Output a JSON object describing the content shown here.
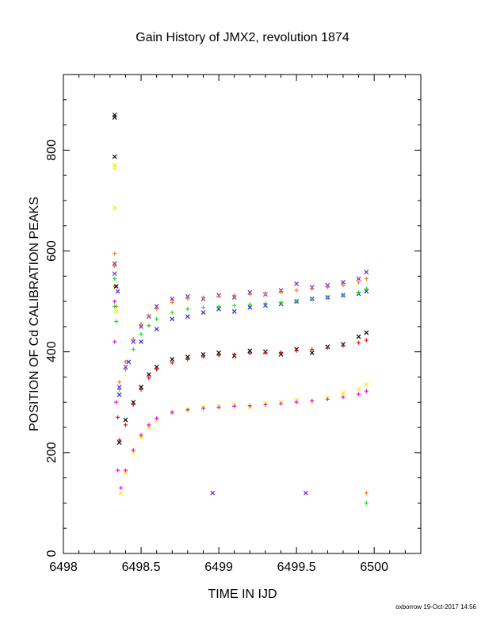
{
  "chart_data": {
    "type": "scatter",
    "title": "Gain History of JMX2, revolution 1874",
    "xlabel": "TIME IN IJD",
    "ylabel": "POSITION OF Cd CALIBRATION PEAKS",
    "xlim": [
      6498,
      6500.3
    ],
    "ylim": [
      0,
      950
    ],
    "x_ticks": [
      6498,
      6498.5,
      6499,
      6499.5,
      6500
    ],
    "x_tick_labels": [
      "6498",
      "6498.5",
      "6499",
      "6499.5",
      "6500"
    ],
    "y_ticks": [
      0,
      200,
      400,
      600,
      800
    ],
    "y_tick_labels": [
      "0",
      "200",
      "400",
      "600",
      "800"
    ],
    "footer": "oxborrow 19-Oct-2017 14:56",
    "grid": false,
    "legend": "none",
    "series": [
      {
        "color": "#7a1fd0",
        "marker": "x",
        "points": [
          [
            6498.33,
            575
          ],
          [
            6498.33,
            555
          ],
          [
            6498.35,
            520
          ],
          [
            6498.36,
            330
          ],
          [
            6498.4,
            370
          ],
          [
            6498.45,
            420
          ],
          [
            6498.5,
            450
          ],
          [
            6498.55,
            470
          ],
          [
            6498.6,
            490
          ],
          [
            6498.7,
            505
          ],
          [
            6498.8,
            510
          ],
          [
            6498.9,
            505
          ],
          [
            6499,
            512
          ],
          [
            6499.1,
            508
          ],
          [
            6499.2,
            518
          ],
          [
            6499.3,
            514
          ],
          [
            6499.4,
            522
          ],
          [
            6499.5,
            535
          ],
          [
            6499.6,
            528
          ],
          [
            6499.7,
            532
          ],
          [
            6499.8,
            538
          ],
          [
            6499.9,
            545
          ],
          [
            6499.95,
            558
          ],
          [
            6498.96,
            120
          ],
          [
            6499.56,
            120
          ]
        ]
      },
      {
        "color": "#2a2ae6",
        "marker": "x",
        "points": [
          [
            6498.36,
            315
          ],
          [
            6498.42,
            380
          ],
          [
            6498.5,
            420
          ],
          [
            6498.6,
            445
          ],
          [
            6498.7,
            465
          ],
          [
            6498.8,
            470
          ],
          [
            6498.9,
            478
          ],
          [
            6499,
            485
          ],
          [
            6499.1,
            480
          ],
          [
            6499.2,
            488
          ],
          [
            6499.3,
            492
          ],
          [
            6499.4,
            495
          ],
          [
            6499.5,
            500
          ],
          [
            6499.6,
            505
          ],
          [
            6499.7,
            508
          ],
          [
            6499.8,
            512
          ],
          [
            6499.9,
            515
          ],
          [
            6499.95,
            520
          ]
        ]
      },
      {
        "color": "#f08020",
        "marker": "+",
        "points": [
          [
            6498.33,
            595
          ],
          [
            6498.33,
            570
          ],
          [
            6498.33,
            530
          ],
          [
            6498.34,
            490
          ],
          [
            6498.36,
            340
          ],
          [
            6498.4,
            380
          ],
          [
            6498.45,
            425
          ],
          [
            6498.5,
            455
          ],
          [
            6498.55,
            472
          ],
          [
            6498.6,
            485
          ],
          [
            6498.7,
            498
          ],
          [
            6498.8,
            505
          ],
          [
            6498.9,
            508
          ],
          [
            6499,
            510
          ],
          [
            6499.1,
            512
          ],
          [
            6499.2,
            514
          ],
          [
            6499.3,
            516
          ],
          [
            6499.4,
            518
          ],
          [
            6499.5,
            522
          ],
          [
            6499.6,
            525
          ],
          [
            6499.7,
            528
          ],
          [
            6499.8,
            532
          ],
          [
            6499.9,
            538
          ],
          [
            6499.95,
            545
          ],
          [
            6499.95,
            120
          ]
        ]
      },
      {
        "color": "#22dd22",
        "marker": "+",
        "points": [
          [
            6498.33,
            545
          ],
          [
            6498.33,
            490
          ],
          [
            6498.34,
            460
          ],
          [
            6498.36,
            325
          ],
          [
            6498.4,
            365
          ],
          [
            6498.45,
            405
          ],
          [
            6498.5,
            435
          ],
          [
            6498.55,
            452
          ],
          [
            6498.6,
            465
          ],
          [
            6498.7,
            478
          ],
          [
            6498.8,
            485
          ],
          [
            6498.9,
            488
          ],
          [
            6499,
            490
          ],
          [
            6499.1,
            492
          ],
          [
            6499.2,
            494
          ],
          [
            6499.3,
            496
          ],
          [
            6499.4,
            498
          ],
          [
            6499.5,
            500
          ],
          [
            6499.6,
            504
          ],
          [
            6499.7,
            508
          ],
          [
            6499.8,
            512
          ],
          [
            6499.9,
            518
          ],
          [
            6499.95,
            525
          ],
          [
            6499.95,
            100
          ]
        ]
      },
      {
        "color": "#000000",
        "marker": "x",
        "points": [
          [
            6498.33,
            870
          ],
          [
            6498.33,
            865
          ],
          [
            6498.33,
            787
          ],
          [
            6498.34,
            530
          ],
          [
            6498.36,
            220
          ],
          [
            6498.4,
            265
          ],
          [
            6498.45,
            300
          ],
          [
            6498.5,
            330
          ],
          [
            6498.55,
            355
          ],
          [
            6498.6,
            370
          ],
          [
            6498.7,
            385
          ],
          [
            6498.8,
            390
          ],
          [
            6498.9,
            395
          ],
          [
            6499,
            398
          ],
          [
            6499.1,
            392
          ],
          [
            6499.2,
            402
          ],
          [
            6499.3,
            400
          ],
          [
            6499.4,
            395
          ],
          [
            6499.5,
            405
          ],
          [
            6499.6,
            398
          ],
          [
            6499.7,
            410
          ],
          [
            6499.8,
            415
          ],
          [
            6499.9,
            430
          ],
          [
            6499.95,
            438
          ]
        ]
      },
      {
        "color": "#e81010",
        "marker": "+",
        "points": [
          [
            6498.35,
            270
          ],
          [
            6498.36,
            225
          ],
          [
            6498.4,
            255
          ],
          [
            6498.45,
            295
          ],
          [
            6498.5,
            325
          ],
          [
            6498.55,
            348
          ],
          [
            6498.6,
            365
          ],
          [
            6498.7,
            378
          ],
          [
            6498.8,
            385
          ],
          [
            6498.9,
            390
          ],
          [
            6499,
            393
          ],
          [
            6499.1,
            395
          ],
          [
            6499.2,
            397
          ],
          [
            6499.3,
            398
          ],
          [
            6499.4,
            399
          ],
          [
            6499.5,
            402
          ],
          [
            6499.6,
            405
          ],
          [
            6499.7,
            408
          ],
          [
            6499.8,
            412
          ],
          [
            6499.9,
            418
          ],
          [
            6499.95,
            423
          ]
        ]
      },
      {
        "color": "#f2f200",
        "marker": "x",
        "points": [
          [
            6498.33,
            770
          ],
          [
            6498.33,
            765
          ],
          [
            6498.33,
            685
          ],
          [
            6498.34,
            480
          ],
          [
            6498.37,
            120
          ],
          [
            6498.4,
            160
          ],
          [
            6498.45,
            200
          ],
          [
            6498.5,
            230
          ],
          [
            6498.55,
            250
          ],
          [
            6498.6,
            265
          ],
          [
            6498.7,
            280
          ],
          [
            6498.8,
            285
          ],
          [
            6498.9,
            290
          ],
          [
            6499,
            292
          ],
          [
            6499.1,
            296
          ],
          [
            6499.2,
            290
          ],
          [
            6499.3,
            298
          ],
          [
            6499.4,
            300
          ],
          [
            6499.5,
            305
          ],
          [
            6499.6,
            300
          ],
          [
            6499.7,
            308
          ],
          [
            6499.8,
            318
          ],
          [
            6499.9,
            325
          ],
          [
            6499.95,
            335
          ]
        ]
      },
      {
        "color": "#ee10ee",
        "marker": "+",
        "points": [
          [
            6498.33,
            500
          ],
          [
            6498.33,
            420
          ],
          [
            6498.34,
            300
          ],
          [
            6498.35,
            165
          ],
          [
            6498.37,
            130
          ],
          [
            6498.4,
            165
          ],
          [
            6498.45,
            205
          ],
          [
            6498.5,
            235
          ],
          [
            6498.55,
            255
          ],
          [
            6498.6,
            268
          ],
          [
            6498.7,
            280
          ],
          [
            6498.8,
            285
          ],
          [
            6498.9,
            288
          ],
          [
            6499,
            290
          ],
          [
            6499.1,
            292
          ],
          [
            6499.2,
            293
          ],
          [
            6499.3,
            295
          ],
          [
            6499.4,
            297
          ],
          [
            6499.5,
            300
          ],
          [
            6499.6,
            303
          ],
          [
            6499.7,
            306
          ],
          [
            6499.8,
            310
          ],
          [
            6499.9,
            316
          ],
          [
            6499.95,
            322
          ]
        ]
      }
    ]
  }
}
